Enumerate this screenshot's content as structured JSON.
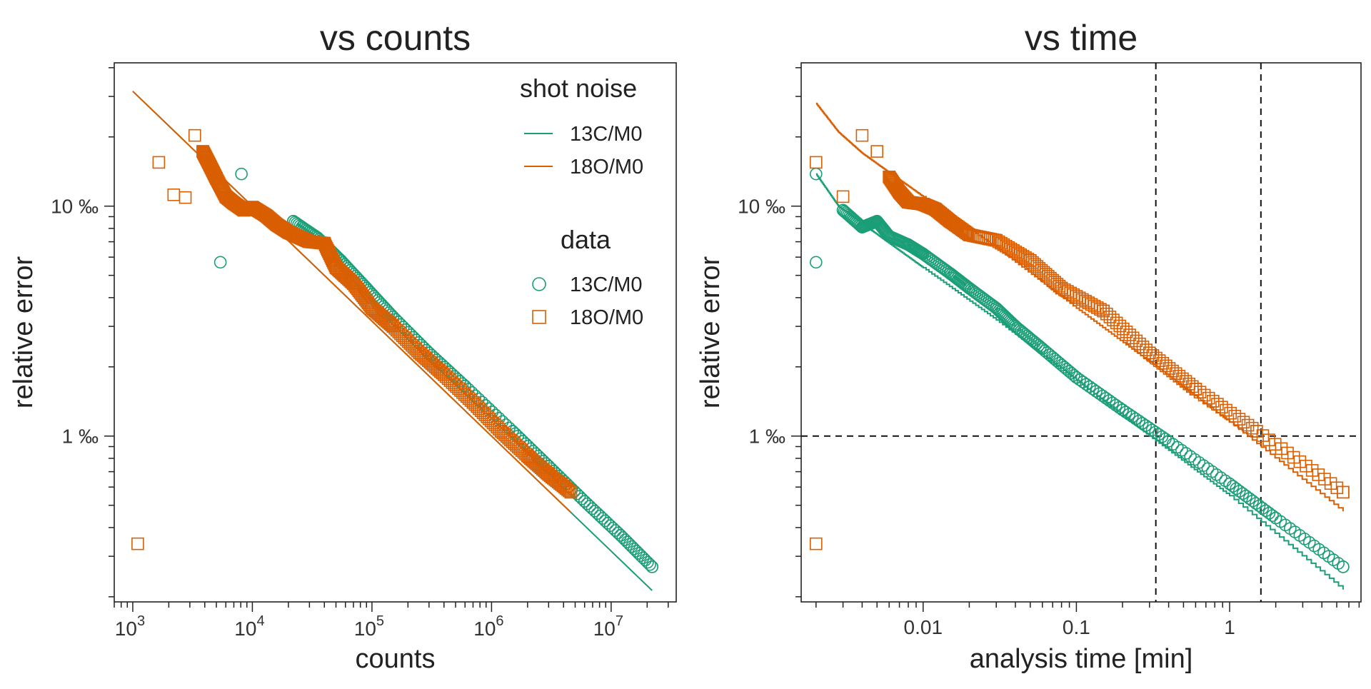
{
  "colors": {
    "c13": "#1b9e77",
    "o18": "#d95f02",
    "frame": "#222222",
    "refline": "#111111"
  },
  "legend": {
    "shot_title": "shot noise",
    "data_title": "data",
    "entries": [
      "13C/M0",
      "18O/M0"
    ],
    "placement": "top-right of left panel"
  },
  "chart_data": [
    {
      "type": "scatter",
      "title": "vs counts",
      "xlabel": "counts",
      "ylabel": "relative error",
      "xscale": "log",
      "yscale": "log",
      "xlim": [
        700,
        35000000
      ],
      "ylim": [
        0.19,
        42
      ],
      "x_ticks": [
        {
          "value": 1000,
          "base": "10",
          "exp": "3"
        },
        {
          "value": 10000,
          "base": "10",
          "exp": "4"
        },
        {
          "value": 100000,
          "base": "10",
          "exp": "5"
        },
        {
          "value": 1000000,
          "base": "10",
          "exp": "6"
        },
        {
          "value": 10000000,
          "base": "10",
          "exp": "7"
        }
      ],
      "y_ticks": [
        {
          "value": 1,
          "label": "1 ‰"
        },
        {
          "value": 10,
          "label": "10 ‰"
        }
      ],
      "grid": false,
      "series": [
        {
          "name": "13C/M0",
          "kind": "shot noise",
          "mark": "line",
          "color": "#1b9e77",
          "x": [
            1000,
            22000000
          ],
          "y": [
            31.6,
            0.213
          ]
        },
        {
          "name": "18O/M0",
          "kind": "shot noise",
          "mark": "line",
          "color": "#d95f02",
          "x": [
            1000,
            4600000
          ],
          "y": [
            31.6,
            0.466
          ]
        },
        {
          "name": "13C/M0",
          "kind": "data",
          "mark": "circle",
          "color": "#1b9e77",
          "x": [
            5400,
            8100,
            22000,
            35000,
            55000,
            90000,
            150000,
            300000,
            600000,
            1500000,
            3000000,
            6000000,
            12000000,
            22000000
          ],
          "y": [
            5.7,
            13.8,
            8.6,
            7.3,
            5.8,
            4.4,
            3.3,
            2.3,
            1.65,
            1.05,
            0.74,
            0.52,
            0.37,
            0.27
          ]
        },
        {
          "name": "18O/M0",
          "kind": "data",
          "mark": "square",
          "color": "#d95f02",
          "x": [
            1100,
            1650,
            2200,
            2750,
            3300,
            3850,
            4400,
            5000,
            6000,
            7000,
            8500,
            10000,
            13000,
            16000,
            20000,
            25000,
            30000,
            40000,
            50000,
            70000,
            100000,
            150000,
            250000,
            400000,
            700000,
            1200000,
            2000000,
            3000000,
            4600000
          ],
          "y": [
            0.34,
            15.5,
            11.2,
            10.9,
            20.3,
            17.3,
            15.1,
            13.2,
            11.0,
            10.3,
            9.6,
            9.9,
            9.1,
            8.3,
            7.7,
            7.3,
            7.0,
            6.9,
            5.4,
            4.6,
            3.6,
            3.0,
            2.3,
            1.85,
            1.4,
            1.05,
            0.82,
            0.68,
            0.57
          ]
        }
      ]
    },
    {
      "type": "scatter",
      "title": "vs time",
      "xlabel": "analysis time [min]",
      "ylabel": "relative error",
      "xscale": "log",
      "yscale": "log",
      "xlim": [
        0.0016,
        7.2
      ],
      "ylim": [
        0.19,
        42
      ],
      "x_ticks": [
        {
          "value": 0.01,
          "label": "0.01"
        },
        {
          "value": 0.1,
          "label": "0.1"
        },
        {
          "value": 1,
          "label": "1"
        }
      ],
      "y_ticks": [
        {
          "value": 1,
          "label": "1 ‰"
        },
        {
          "value": 10,
          "label": "10 ‰"
        }
      ],
      "grid": false,
      "reference_lines": {
        "vertical_x": [
          0.33,
          1.6
        ],
        "horizontal_y": [
          1
        ],
        "style": "dashed"
      },
      "series": [
        {
          "name": "13C/M0",
          "kind": "shot noise",
          "mark": "step-line",
          "color": "#1b9e77",
          "x": [
            0.002,
            0.0028,
            0.004,
            0.006,
            0.01,
            0.03,
            0.1,
            0.3,
            1,
            5.5
          ],
          "y": [
            13.8,
            10.0,
            8.4,
            6.9,
            5.4,
            3.2,
            1.75,
            1.0,
            0.55,
            0.215
          ]
        },
        {
          "name": "18O/M0",
          "kind": "shot noise",
          "mark": "step-line",
          "color": "#d95f02",
          "x": [
            0.002,
            0.0028,
            0.004,
            0.006,
            0.01,
            0.03,
            0.1,
            0.3,
            1,
            5.5
          ],
          "y": [
            28.0,
            21.0,
            17.0,
            14.0,
            11.0,
            6.6,
            3.6,
            2.1,
            1.15,
            0.47
          ]
        },
        {
          "name": "13C/M0",
          "kind": "data",
          "mark": "circle",
          "color": "#1b9e77",
          "x": [
            0.002,
            0.002,
            0.003,
            0.004,
            0.005,
            0.006,
            0.008,
            0.01,
            0.015,
            0.02,
            0.03,
            0.04,
            0.06,
            0.1,
            0.2,
            0.4,
            1,
            2,
            5.5
          ],
          "y": [
            5.7,
            13.8,
            9.6,
            8.1,
            8.6,
            7.4,
            6.8,
            6.2,
            5.1,
            4.4,
            3.6,
            3.0,
            2.4,
            1.8,
            1.3,
            0.95,
            0.62,
            0.44,
            0.27
          ]
        },
        {
          "name": "18O/M0",
          "kind": "data",
          "mark": "square",
          "color": "#d95f02",
          "x": [
            0.002,
            0.002,
            0.003,
            0.004,
            0.005,
            0.006,
            0.007,
            0.008,
            0.01,
            0.012,
            0.015,
            0.02,
            0.03,
            0.05,
            0.08,
            0.15,
            0.3,
            0.6,
            1.5,
            5.5
          ],
          "y": [
            0.34,
            15.5,
            11.0,
            20.3,
            17.3,
            13.4,
            11.5,
            10.4,
            10.2,
            9.7,
            8.6,
            7.5,
            7.1,
            5.8,
            4.4,
            3.5,
            2.3,
            1.6,
            1.05,
            0.57
          ]
        }
      ]
    }
  ]
}
